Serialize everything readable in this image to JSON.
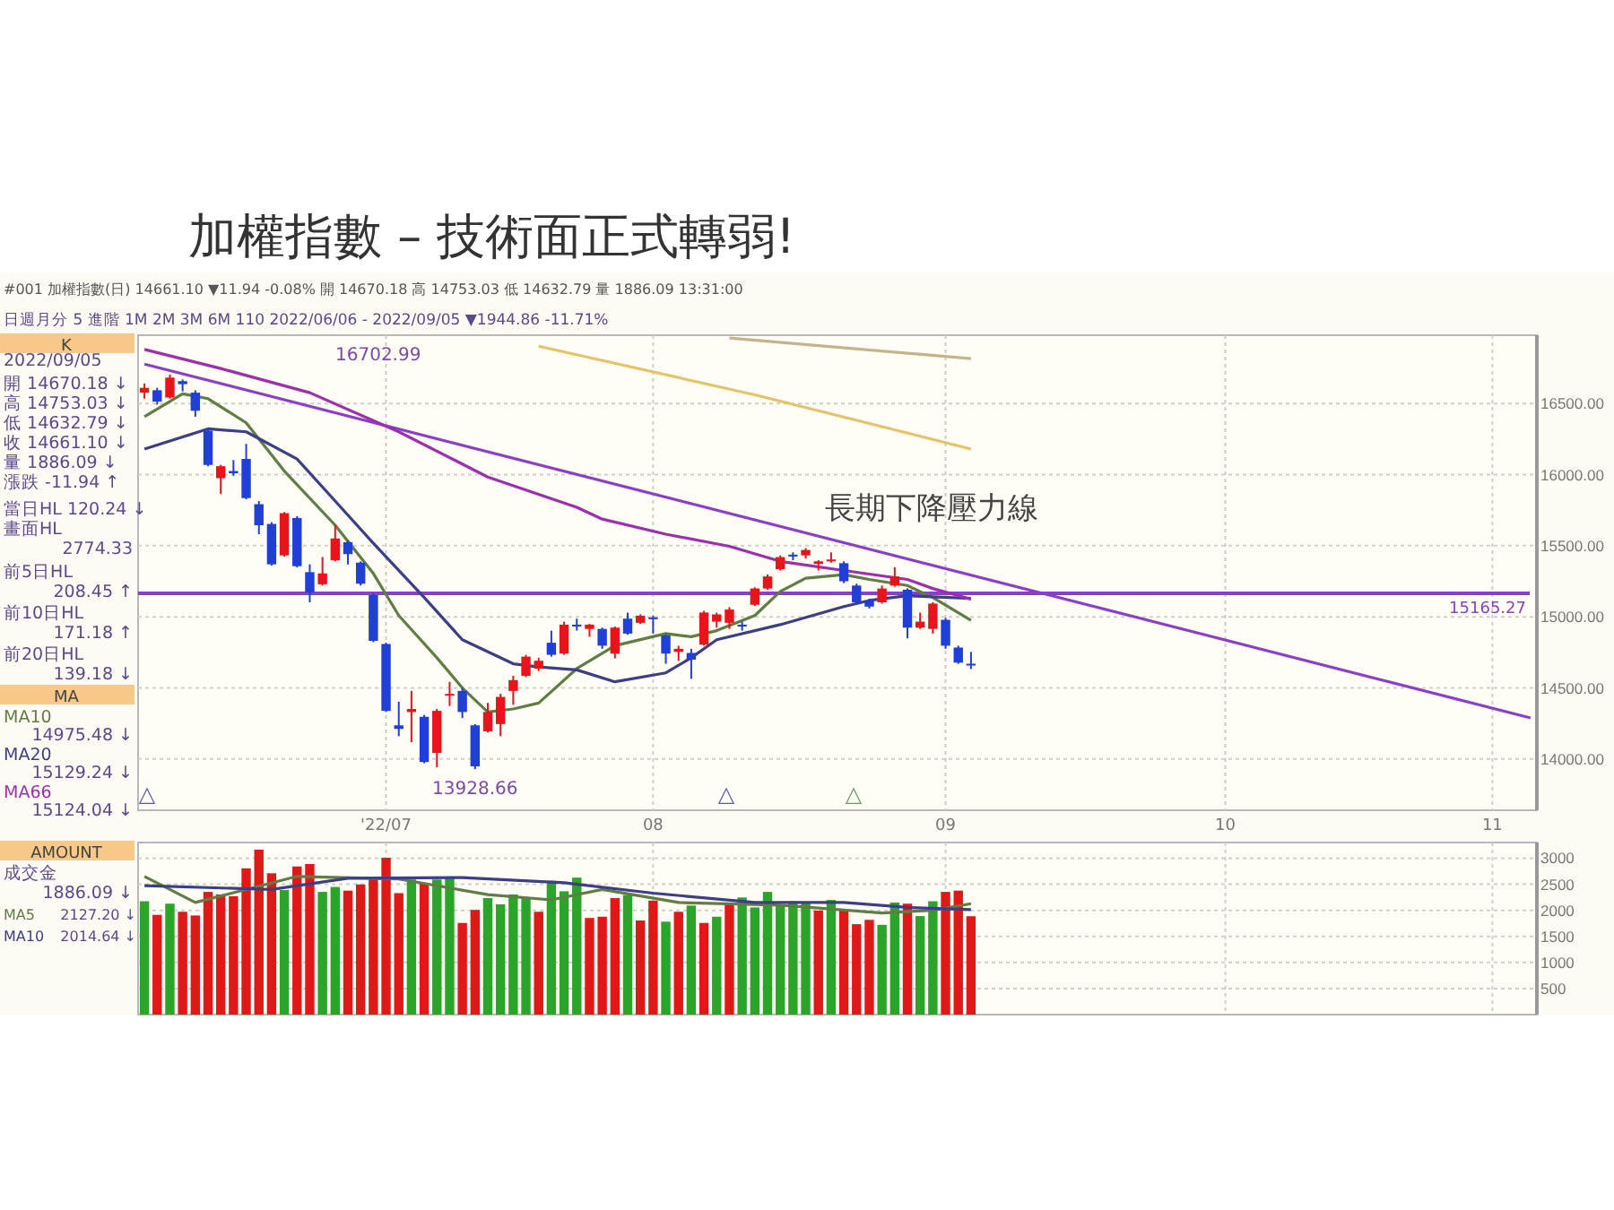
{
  "chart_data": [
    {
      "type": "candlestick",
      "title": "加權指數 – 技術面正式轉弱!",
      "subtitle": "#001  加權指數(日)  14661.10  ▼11.94  -0.08%  開 14670.18  高 14753.03  低 14632.79  量 1886.09  13:31:00",
      "categories": [
        null,
        null,
        null,
        null,
        null,
        null,
        null,
        null,
        null,
        null,
        null,
        null,
        null,
        null,
        null,
        null,
        null,
        null,
        null,
        "'22/07",
        null,
        null,
        null,
        null,
        null,
        null,
        null,
        null,
        null,
        null,
        null,
        null,
        null,
        null,
        null,
        null,
        null,
        null,
        null,
        null,
        "08",
        null,
        null,
        null,
        null,
        null,
        null,
        null,
        null,
        null,
        null,
        null,
        null,
        null,
        null,
        null,
        null,
        null,
        null,
        null,
        null,
        null,
        null,
        "09",
        null,
        null,
        null,
        null,
        null,
        null,
        null,
        null,
        null,
        null,
        null,
        null,
        null,
        null,
        null,
        null,
        null,
        null,
        null,
        null,
        null,
        "10",
        null,
        null,
        null,
        null,
        null,
        null,
        null,
        null,
        null,
        null,
        null,
        null,
        null,
        null,
        null,
        null,
        null,
        null,
        null,
        null,
        "11",
        null,
        null,
        null
      ],
      "ylim": [
        13640,
        16980
      ],
      "yticks": [
        {
          "value": 14000,
          "label": "14000.00"
        },
        {
          "value": 14500,
          "label": "14500.00"
        },
        {
          "value": 15000,
          "label": "15000.00"
        },
        {
          "value": 15500,
          "label": "15500.00"
        },
        {
          "value": 16000,
          "label": "16000.00"
        },
        {
          "value": 16500,
          "label": "16500.00"
        }
      ],
      "grid": true,
      "legend": "left",
      "ref_lines": [
        {
          "axis": "y",
          "value": 15165.27,
          "label": "15165.27",
          "color": "#8a3fc8"
        }
      ],
      "annotations": [
        "16702.99",
        {
          "text": "13928.66",
          "y": 13928.66
        },
        "長期下降壓力線",
        "△",
        "△",
        "△",
        "日週月分  5  進階  1M 2M 3M 6M  110  2022/06/06 - 2022/09/05  ▼1944.86  -11.71%",
        "K",
        "2022/09/05",
        "開 14670.18 ↓",
        "高 14753.03 ↓",
        "低 14632.79 ↓",
        "收 14661.10 ↓",
        "量 1886.09 ↓",
        "漲跌 -11.94 ↑",
        "當日HL 120.24 ↓",
        "畫面HL",
        "2774.33",
        "前5日HL",
        "208.45 ↑",
        "前10日HL",
        "171.18 ↑",
        "前20日HL",
        "139.18 ↓",
        "MA",
        "14975.48 ↓",
        "15129.24 ↓",
        "15124.04 ↓"
      ],
      "series": [
        {
          "type": "line",
          "color": "#e3c46a",
          "values": [
            null,
            null,
            null,
            null,
            null,
            null,
            null,
            null,
            null,
            null,
            null,
            null,
            null,
            null,
            null,
            null,
            null,
            null,
            null,
            null,
            null,
            null,
            null,
            null,
            null,
            null,
            null,
            null,
            null,
            null,
            null,
            16903,
            null,
            null,
            null,
            null,
            null,
            null,
            null,
            null,
            null,
            null,
            null,
            null,
            null,
            null,
            null,
            null,
            16561,
            null,
            null,
            null,
            null,
            null,
            null,
            null,
            null,
            null,
            null,
            null,
            null,
            null,
            null,
            null,
            null,
            16180,
            null,
            null,
            null,
            null,
            null,
            null,
            null,
            null,
            null,
            null,
            null,
            null,
            null,
            null,
            null,
            null,
            null,
            null,
            null,
            null,
            null,
            null,
            null,
            null,
            null,
            null,
            null,
            null,
            null,
            null,
            null,
            null,
            null,
            null,
            null,
            null,
            null,
            null,
            null,
            null,
            null,
            null,
            null,
            null
          ]
        },
        {
          "type": "line",
          "color": "#c4b48c",
          "values": [
            null,
            null,
            null,
            null,
            null,
            null,
            null,
            null,
            null,
            null,
            null,
            null,
            null,
            null,
            null,
            null,
            null,
            null,
            null,
            null,
            null,
            null,
            null,
            null,
            null,
            null,
            null,
            null,
            null,
            null,
            null,
            null,
            null,
            null,
            null,
            null,
            null,
            null,
            null,
            null,
            null,
            null,
            null,
            null,
            null,
            null,
            16960,
            null,
            null,
            null,
            null,
            null,
            null,
            null,
            null,
            null,
            null,
            null,
            null,
            null,
            null,
            null,
            null,
            null,
            null,
            16815,
            null,
            null,
            null,
            null,
            null,
            null,
            null,
            null,
            null,
            null,
            null,
            null,
            null,
            null,
            null,
            null,
            null,
            null,
            null,
            null,
            null,
            null,
            null,
            null,
            null,
            null,
            null,
            null,
            null,
            null,
            null,
            null,
            null,
            null,
            null,
            null,
            null,
            null,
            null,
            null,
            null,
            null,
            null,
            null
          ]
        },
        {
          "type": "line",
          "color": "#8a3fc8",
          "values": [
            16777,
            null,
            null,
            null,
            null,
            null,
            null,
            null,
            null,
            null,
            null,
            null,
            null,
            null,
            null,
            null,
            null,
            null,
            null,
            null,
            null,
            null,
            null,
            null,
            null,
            null,
            null,
            null,
            null,
            null,
            null,
            null,
            null,
            null,
            null,
            null,
            null,
            null,
            null,
            null,
            null,
            null,
            null,
            null,
            null,
            null,
            null,
            null,
            null,
            null,
            null,
            null,
            null,
            null,
            null,
            null,
            null,
            null,
            null,
            null,
            null,
            null,
            null,
            null,
            null,
            null,
            null,
            null,
            null,
            null,
            null,
            null,
            null,
            null,
            null,
            null,
            null,
            null,
            null,
            null,
            null,
            null,
            null,
            null,
            null,
            null,
            null,
            null,
            null,
            null,
            null,
            null,
            null,
            null,
            null,
            null,
            null,
            null,
            null,
            null,
            null,
            null,
            null,
            null,
            null,
            null,
            null,
            null,
            null,
            14289
          ]
        },
        {
          "type": "line",
          "name": "MA10",
          "color": "#5f7d45",
          "values": [
            16407,
            null,
            null,
            16568,
            null,
            16534,
            null,
            null,
            16364,
            null,
            null,
            16025,
            null,
            null,
            null,
            15644,
            null,
            null,
            15305,
            null,
            15009,
            null,
            null,
            14712,
            null,
            14500,
            null,
            14331,
            null,
            14352,
            null,
            14394,
            null,
            null,
            14636,
            null,
            null,
            14797,
            null,
            null,
            null,
            14882,
            null,
            14860,
            null,
            14903,
            null,
            null,
            15009,
            null,
            15178,
            null,
            15271,
            null,
            null,
            15297,
            null,
            15263,
            null,
            null,
            15220,
            null,
            15136,
            null,
            null,
            14975.48,
            null,
            null,
            null,
            null,
            null,
            null,
            null,
            null,
            null,
            null,
            null,
            null,
            null,
            null,
            null,
            null,
            null,
            null,
            null,
            null,
            null,
            null,
            null,
            null,
            null,
            null,
            null,
            null,
            null,
            null,
            null,
            null,
            null,
            null,
            null,
            null,
            null,
            null,
            null,
            null,
            null,
            null,
            null,
            null
          ]
        },
        {
          "type": "line",
          "name": "MA20",
          "color": "#3c3f86",
          "values": [
            16180,
            null,
            null,
            null,
            null,
            16322,
            null,
            null,
            16301,
            null,
            null,
            null,
            16110,
            null,
            null,
            15814,
            null,
            null,
            15517,
            null,
            null,
            null,
            15136,
            null,
            null,
            14839,
            null,
            null,
            null,
            14670,
            null,
            14648,
            null,
            null,
            14627,
            null,
            null,
            14543,
            null,
            null,
            null,
            14606,
            null,
            14712,
            null,
            14839,
            null,
            null,
            null,
            null,
            14945,
            null,
            null,
            null,
            null,
            15072,
            null,
            15115,
            null,
            null,
            15148,
            null,
            null,
            null,
            null,
            15129.24,
            null,
            null,
            null,
            null,
            null,
            null,
            null,
            null,
            null,
            null,
            null,
            null,
            null,
            null,
            null,
            null,
            null,
            null,
            null,
            null,
            null,
            null,
            null,
            null,
            null,
            null,
            null,
            null,
            null,
            null,
            null,
            null,
            null,
            null,
            null,
            null,
            null,
            null,
            null,
            null,
            null,
            null,
            null,
            null
          ]
        },
        {
          "type": "line",
          "name": "MA66",
          "color": "#9b2fae",
          "values": [
            16880,
            null,
            null,
            null,
            null,
            null,
            16746,
            null,
            null,
            null,
            null,
            null,
            null,
            16576,
            null,
            null,
            null,
            null,
            null,
            null,
            16301,
            null,
            null,
            null,
            null,
            null,
            null,
            15983,
            null,
            null,
            null,
            null,
            null,
            null,
            15770,
            null,
            15687,
            null,
            null,
            null,
            null,
            15581,
            null,
            null,
            null,
            null,
            15496,
            null,
            null,
            null,
            15390,
            null,
            null,
            null,
            null,
            15326,
            null,
            null,
            null,
            null,
            15263,
            null,
            15199,
            null,
            null,
            15124.04,
            null,
            null,
            null,
            null,
            null,
            null,
            null,
            null,
            null,
            null,
            null,
            null,
            null,
            null,
            null,
            null,
            null,
            null,
            null,
            null,
            null,
            null,
            null,
            null,
            null,
            null,
            null,
            null,
            null,
            null,
            null,
            null,
            null,
            null,
            null,
            null,
            null,
            null,
            null,
            null,
            null,
            null,
            null,
            null
          ]
        },
        {
          "ohlc": [
            [
              16576,
              16640,
              16534,
              16610
            ],
            [
              16593,
              16610,
              16492,
              16513
            ],
            [
              16542,
              16702.99,
              16534,
              16682
            ],
            [
              16657,
              16669,
              16585,
              16636
            ],
            [
              16576,
              16593,
              16407,
              16449
            ],
            [
              16309,
              16322,
              16059,
              16068
            ],
            [
              15975,
              16068,
              15864,
              16059
            ],
            [
              16025,
              16102,
              15992,
              16009
            ],
            [
              16110,
              16216,
              15826,
              15835
            ],
            [
              15792,
              15814,
              15581,
              15644
            ],
            [
              15653,
              15665,
              15360,
              15369
            ],
            [
              15432,
              15737,
              15424,
              15729
            ],
            [
              15695,
              15708,
              15348,
              15356
            ],
            [
              15314,
              15369,
              15102,
              15170
            ],
            [
              15229,
              15420,
              15220,
              15305
            ],
            [
              15398,
              15644,
              15390,
              15551
            ],
            [
              15525,
              15538,
              15369,
              15441
            ],
            [
              15381,
              15390,
              15220,
              15233
            ],
            [
              15153,
              15165,
              14822,
              14831
            ],
            [
              14809,
              14818,
              14331,
              14339
            ],
            [
              14237,
              14403,
              14161,
              14212
            ],
            [
              14331,
              14479,
              14119,
              14352
            ],
            [
              14297,
              14310,
              13971,
              13979
            ],
            [
              14043,
              14352,
              13941,
              14339
            ],
            [
              14449,
              14543,
              14373,
              14458
            ],
            [
              14479,
              14500,
              14288,
              14331
            ],
            [
              14237,
              14246,
              13928.66,
              13949
            ],
            [
              14195,
              14394,
              14187,
              14331
            ],
            [
              14246,
              14458,
              14161,
              14437
            ],
            [
              14479,
              14585,
              14382,
              14555
            ],
            [
              14585,
              14733,
              14576,
              14720
            ],
            [
              14636,
              14712,
              14619,
              14691
            ],
            [
              14818,
              14903,
              14720,
              14733
            ],
            [
              14742,
              14966,
              14733,
              14945
            ],
            [
              14945,
              14987,
              14903,
              14932
            ],
            [
              14915,
              14950,
              14860,
              14945
            ],
            [
              14915,
              14924,
              14775,
              14797
            ],
            [
              14742,
              14932,
              14708,
              14924
            ],
            [
              14987,
              15030,
              14873,
              14882
            ],
            [
              14958,
              15017,
              14950,
              15008
            ],
            [
              14996,
              15008,
              14882,
              14987
            ],
            [
              14869,
              14882,
              14670,
              14742
            ],
            [
              14754,
              14797,
              14691,
              14775
            ],
            [
              14746,
              14775,
              14564,
              14699
            ],
            [
              14805,
              15042,
              14797,
              15030
            ],
            [
              14966,
              15030,
              14924,
              15017
            ],
            [
              14958,
              15068,
              14915,
              15051
            ],
            [
              14945,
              14966,
              14903,
              14932
            ],
            [
              15085,
              15207,
              15076,
              15199
            ],
            [
              15199,
              15297,
              15191,
              15284
            ],
            [
              15335,
              15432,
              15326,
              15420
            ],
            [
              15437,
              15453,
              15398,
              15428
            ],
            [
              15432,
              15483,
              15411,
              15470
            ],
            [
              15373,
              15398,
              15326,
              15390
            ],
            [
              15390,
              15453,
              15381,
              15403
            ],
            [
              15377,
              15390,
              15237,
              15250
            ],
            [
              15220,
              15233,
              15093,
              15102
            ],
            [
              15115,
              15127,
              15059,
              15072
            ],
            [
              15102,
              15220,
              15093,
              15199
            ],
            [
              15220,
              15348,
              15212,
              15284
            ],
            [
              15191,
              15199,
              14848,
              14924
            ],
            [
              14924,
              15030,
              14915,
              14966
            ],
            [
              14915,
              15102,
              14882,
              15093
            ],
            [
              14979,
              14992,
              14775,
              14797
            ],
            [
              14784,
              14797,
              14670,
              14678
            ],
            [
              14670.18,
              14753.03,
              14632.79,
              14661.1
            ],
            null,
            null,
            null,
            null,
            null,
            null,
            null,
            null,
            null,
            null,
            null,
            null,
            null,
            null,
            null,
            null,
            null,
            null,
            null,
            null,
            null,
            null,
            null,
            null,
            null,
            null,
            null,
            null,
            null,
            null,
            null,
            null,
            null,
            null,
            null,
            null,
            null,
            null,
            null,
            null,
            null,
            null,
            null,
            null
          ],
          "colors": [
            "#e8141c",
            "#1f3fd6",
            "#e8141c",
            "#1f3fd6",
            "#1f3fd6",
            "#1f3fd6",
            "#e8141c",
            "#1f3fd6",
            "#1f3fd6",
            "#1f3fd6",
            "#1f3fd6",
            "#e8141c",
            "#1f3fd6",
            "#1f3fd6",
            "#e8141c",
            "#e8141c",
            "#1f3fd6",
            "#1f3fd6",
            "#1f3fd6",
            "#1f3fd6",
            "#1f3fd6",
            "#e8141c",
            "#1f3fd6",
            "#e8141c",
            "#e8141c",
            "#1f3fd6",
            "#1f3fd6",
            "#e8141c",
            "#e8141c",
            "#e8141c",
            "#e8141c",
            "#e8141c",
            "#1f3fd6",
            "#e8141c",
            "#1f3fd6",
            "#e8141c",
            "#1f3fd6",
            "#e8141c",
            "#1f3fd6",
            "#e8141c",
            "#1f3fd6",
            "#1f3fd6",
            "#e8141c",
            "#1f3fd6",
            "#e8141c",
            "#e8141c",
            "#e8141c",
            "#1f3fd6",
            "#e8141c",
            "#e8141c",
            "#e8141c",
            "#1f3fd6",
            "#e8141c",
            "#e8141c",
            "#e8141c",
            "#1f3fd6",
            "#1f3fd6",
            "#1f3fd6",
            "#e8141c",
            "#e8141c",
            "#1f3fd6",
            "#e8141c",
            "#e8141c",
            "#1f3fd6",
            "#1f3fd6",
            "#1f3fd6",
            null,
            null,
            null,
            null,
            null,
            null,
            null,
            null,
            null,
            null,
            null,
            null,
            null,
            null,
            null,
            null,
            null,
            null,
            null,
            null,
            null,
            null,
            null,
            null,
            null,
            null,
            null,
            null,
            null,
            null,
            null,
            null,
            null,
            null,
            null,
            null,
            null,
            null,
            null,
            null,
            null,
            null,
            null,
            null
          ]
        }
      ]
    },
    {
      "type": "bar",
      "categories": [
        null,
        null,
        null,
        null,
        null,
        null,
        null,
        null,
        null,
        null,
        null,
        null,
        null,
        null,
        null,
        null,
        null,
        null,
        null,
        null,
        null,
        null,
        null,
        null,
        null,
        null,
        null,
        null,
        null,
        null,
        null,
        null,
        null,
        null,
        null,
        null,
        null,
        null,
        null,
        null,
        null,
        null,
        null,
        null,
        null,
        null,
        null,
        null,
        null,
        null,
        null,
        null,
        null,
        null,
        null,
        null,
        null,
        null,
        null,
        null,
        null,
        null,
        null,
        null,
        null,
        null,
        null,
        null,
        null,
        null,
        null,
        null,
        null,
        null,
        null,
        null,
        null,
        null,
        null,
        null,
        null,
        null,
        null,
        null,
        null,
        null,
        null,
        null,
        null,
        null,
        null,
        null,
        null,
        null,
        null,
        null,
        null,
        null,
        null,
        null,
        null,
        null,
        null,
        null,
        null,
        null,
        null,
        null,
        null,
        null
      ],
      "ylim": [
        0,
        3300
      ],
      "yticks": [
        500,
        1000,
        1500,
        2000,
        2500,
        3000
      ],
      "tick_labels": "y",
      "grid": true,
      "legend": "left",
      "annotations": [
        "AMOUNT",
        "成交金",
        "1886.09 ↓",
        "2127.20 ↓",
        "2014.64 ↓"
      ],
      "series": [
        {
          "values": [
            2174,
            1913,
            2127,
            1972,
            1901,
            2353,
            2305,
            2270,
            2805,
            3162,
            2710,
            2389,
            2841,
            2888,
            2353,
            2448,
            2377,
            2496,
            2591,
            3007,
            2329,
            2591,
            2508,
            2591,
            2615,
            1758,
            2008,
            2234,
            2115,
            2305,
            2246,
            1972,
            2567,
            2365,
            2627,
            1853,
            1877,
            2234,
            2293,
            1805,
            2186,
            1782,
            1972,
            2091,
            1758,
            1877,
            2115,
            2246,
            2055,
            2353,
            2091,
            2174,
            2150,
            1996,
            2198,
            1996,
            1734,
            1817,
            1722,
            2150,
            2127,
            1889,
            2174,
            2353,
            2377,
            1886.09,
            null,
            null,
            null,
            null,
            null,
            null,
            null,
            null,
            null,
            null,
            null,
            null,
            null,
            null,
            null,
            null,
            null,
            null,
            null,
            null,
            null,
            null,
            null,
            null,
            null,
            null,
            null,
            null,
            null,
            null,
            null,
            null,
            null,
            null,
            null,
            null,
            null,
            null,
            null,
            null,
            null,
            null,
            null,
            null
          ],
          "colors": [
            "#2aa52a",
            "#e01818",
            "#2aa52a",
            "#e01818",
            "#e01818",
            "#e01818",
            "#e01818",
            "#e01818",
            "#e01818",
            "#e01818",
            "#e01818",
            "#2aa52a",
            "#e01818",
            "#e01818",
            "#2aa52a",
            "#2aa52a",
            "#e01818",
            "#e01818",
            "#e01818",
            "#e01818",
            "#e01818",
            "#2aa52a",
            "#e01818",
            "#2aa52a",
            "#2aa52a",
            "#e01818",
            "#e01818",
            "#2aa52a",
            "#2aa52a",
            "#2aa52a",
            "#2aa52a",
            "#e01818",
            "#2aa52a",
            "#2aa52a",
            "#2aa52a",
            "#e01818",
            "#e01818",
            "#e01818",
            "#2aa52a",
            "#e01818",
            "#e01818",
            "#2aa52a",
            "#e01818",
            "#2aa52a",
            "#e01818",
            "#2aa52a",
            "#e01818",
            "#2aa52a",
            "#2aa52a",
            "#2aa52a",
            "#2aa52a",
            "#2aa52a",
            "#2aa52a",
            "#e01818",
            "#2aa52a",
            "#e01818",
            "#e01818",
            "#e01818",
            "#2aa52a",
            "#2aa52a",
            "#e01818",
            "#2aa52a",
            "#2aa52a",
            "#e01818",
            "#e01818",
            "#e01818",
            null,
            null,
            null,
            null,
            null,
            null,
            null,
            null,
            null,
            null,
            null,
            null,
            null,
            null,
            null,
            null,
            null,
            null,
            null,
            null,
            null,
            null,
            null,
            null,
            null,
            null,
            null,
            null,
            null,
            null,
            null,
            null,
            null,
            null,
            null,
            null,
            null,
            null,
            null,
            null,
            null,
            null,
            null,
            null
          ]
        },
        {
          "type": "line",
          "name": "MA5",
          "color": "#5f7d45",
          "values": [
            2650,
            null,
            null,
            null,
            2150,
            null,
            null,
            null,
            null,
            null,
            null,
            null,
            2650,
            null,
            null,
            null,
            null,
            null,
            null,
            null,
            2600,
            null,
            null,
            null,
            null,
            null,
            null,
            2300,
            null,
            null,
            null,
            null,
            2200,
            null,
            null,
            null,
            2400,
            null,
            null,
            null,
            null,
            null,
            2150,
            null,
            null,
            null,
            null,
            null,
            null,
            null,
            2100,
            null,
            null,
            null,
            null,
            null,
            null,
            null,
            1950,
            null,
            null,
            null,
            2000,
            null,
            null,
            2127.2,
            null,
            null,
            null,
            null,
            null,
            null,
            null,
            null,
            null,
            null,
            null,
            null,
            null,
            null,
            null,
            null,
            null,
            null,
            null,
            null,
            null,
            null,
            null,
            null,
            null,
            null,
            null,
            null,
            null,
            null,
            null,
            null,
            null,
            null,
            null,
            null,
            null,
            null,
            null,
            null,
            null,
            null,
            null,
            null
          ]
        },
        {
          "type": "line",
          "name": "MA10",
          "color": "#3c3f86",
          "values": [
            2472,
            null,
            null,
            null,
            null,
            null,
            null,
            null,
            null,
            null,
            2400,
            null,
            null,
            null,
            null,
            null,
            2615,
            null,
            null,
            null,
            null,
            null,
            null,
            null,
            null,
            2627,
            null,
            null,
            null,
            null,
            null,
            null,
            null,
            2530,
            null,
            null,
            null,
            null,
            null,
            null,
            2329,
            null,
            null,
            null,
            null,
            null,
            null,
            null,
            2150,
            null,
            null,
            null,
            null,
            null,
            null,
            2150,
            null,
            null,
            null,
            null,
            2055,
            null,
            null,
            null,
            null,
            2014.64,
            null,
            null,
            null,
            null,
            null,
            null,
            null,
            null,
            null,
            null,
            null,
            null,
            null,
            null,
            null,
            null,
            null,
            null,
            null,
            null,
            null,
            null,
            null,
            null,
            null,
            null,
            null,
            null,
            null,
            null,
            null,
            null,
            null,
            null,
            null,
            null,
            null,
            null,
            null,
            null,
            null,
            null,
            null,
            null
          ]
        }
      ]
    }
  ]
}
